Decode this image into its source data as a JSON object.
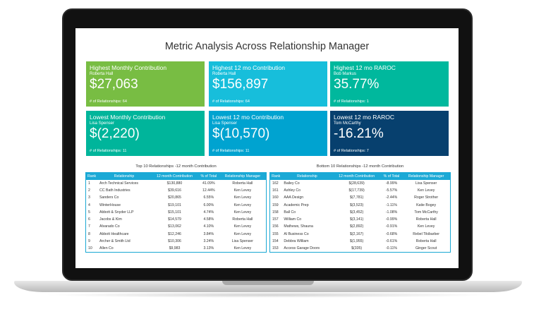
{
  "title": "Metric Analysis Across Relationship Manager",
  "cards": [
    {
      "heading": "Highest Monthly Contribution",
      "name": "Roberta Hall",
      "value": "$27,063",
      "footer": "# of Relationships: 64",
      "color": "#78bd43"
    },
    {
      "heading": "Highest 12 mo Contribution",
      "name": "Roberta Hall",
      "value": "$156,897",
      "footer": "# of Relationships: 64",
      "color": "#17bedb"
    },
    {
      "heading": "Highest 12 mo RAROC",
      "name": "Bob Markus",
      "value": "35.77%",
      "footer": "# of Relationships: 1",
      "color": "#00b89d"
    },
    {
      "heading": "Lowest Monthly Contribution",
      "name": "Lisa Spenser",
      "value": "$(2,220)",
      "footer": "# of Relationships: 11",
      "color": "#00b59b"
    },
    {
      "heading": "Lowest 12 mo Contribution",
      "name": "Lisa Spenser",
      "value": "$(10,570)",
      "footer": "# of Relationships: 11",
      "color": "#00a3d0"
    },
    {
      "heading": "Lowest 12 mo RAROC",
      "name": "Tom McCarthy",
      "value": "-16.21%",
      "footer": "# of Relationships: 7",
      "color": "#07406e"
    }
  ],
  "columns": [
    "Rank",
    "Relationship",
    "12 month Contribution",
    "% of Total",
    "Relationship Manager"
  ],
  "top": {
    "caption": "Top 10 Relationships -12 month Contribution",
    "rows": [
      [
        "1",
        "Arch Technical Services",
        "$130,880",
        "41.09%",
        "Roberta Hall"
      ],
      [
        "2",
        "CC Bath Industries",
        "$39,616",
        "12.44%",
        "Ken Levey"
      ],
      [
        "3",
        "Sanders Co",
        "$20,865",
        "6.55%",
        "Ken Levey"
      ],
      [
        "4",
        "WinterHouse",
        "$19,101",
        "6.00%",
        "Ken Levey"
      ],
      [
        "5",
        "Abbott & Snyder LLP",
        "$15,101",
        "4.74%",
        "Ken Levey"
      ],
      [
        "6",
        "Jacobs & Kim",
        "$14,579",
        "4.58%",
        "Roberta Hall"
      ],
      [
        "7",
        "Alvarado Co",
        "$13,062",
        "4.10%",
        "Ken Levey"
      ],
      [
        "8",
        "Abbott Healthcare",
        "$12,246",
        "3.84%",
        "Ken Levey"
      ],
      [
        "9",
        "Archer & Smith Ltd",
        "$10,306",
        "3.24%",
        "Lisa Spenser"
      ],
      [
        "10",
        "Allen Co",
        "$9,983",
        "3.13%",
        "Ken Levey"
      ]
    ]
  },
  "bottom": {
    "caption": "Bottom 10 Relationships -12 month Contribution",
    "rows": [
      [
        "162",
        "Bailey Co",
        "$(28,639)",
        "-8.99%",
        "Lisa Spenser"
      ],
      [
        "161",
        "Ashley Co",
        "$(17,739)",
        "-5.57%",
        "Ken Levey"
      ],
      [
        "160",
        "AAA Design",
        "$(7,781)",
        "-2.44%",
        "Roger Strother"
      ],
      [
        "159",
        "Academic Prep",
        "$(3,523)",
        "-1.11%",
        "Katie Bogey"
      ],
      [
        "158",
        "Ball Co",
        "$(3,452)",
        "-1.08%",
        "Tom McCarthy"
      ],
      [
        "157",
        "William Co",
        "$(3,141)",
        "-0.99%",
        "Roberta Hall"
      ],
      [
        "156",
        "Mathews, Shauna",
        "$(2,892)",
        "-0.91%",
        "Ken Levey"
      ],
      [
        "155",
        "Al Business Co",
        "$(2,167)",
        "-0.68%",
        "Rebel Tikibarber"
      ],
      [
        "154",
        "Debbra William",
        "$(1,955)",
        "-0.61%",
        "Roberta Hall"
      ],
      [
        "153",
        "Access Garage Doors",
        "$(335)",
        "-0.11%",
        "Ginger Scout"
      ]
    ]
  }
}
